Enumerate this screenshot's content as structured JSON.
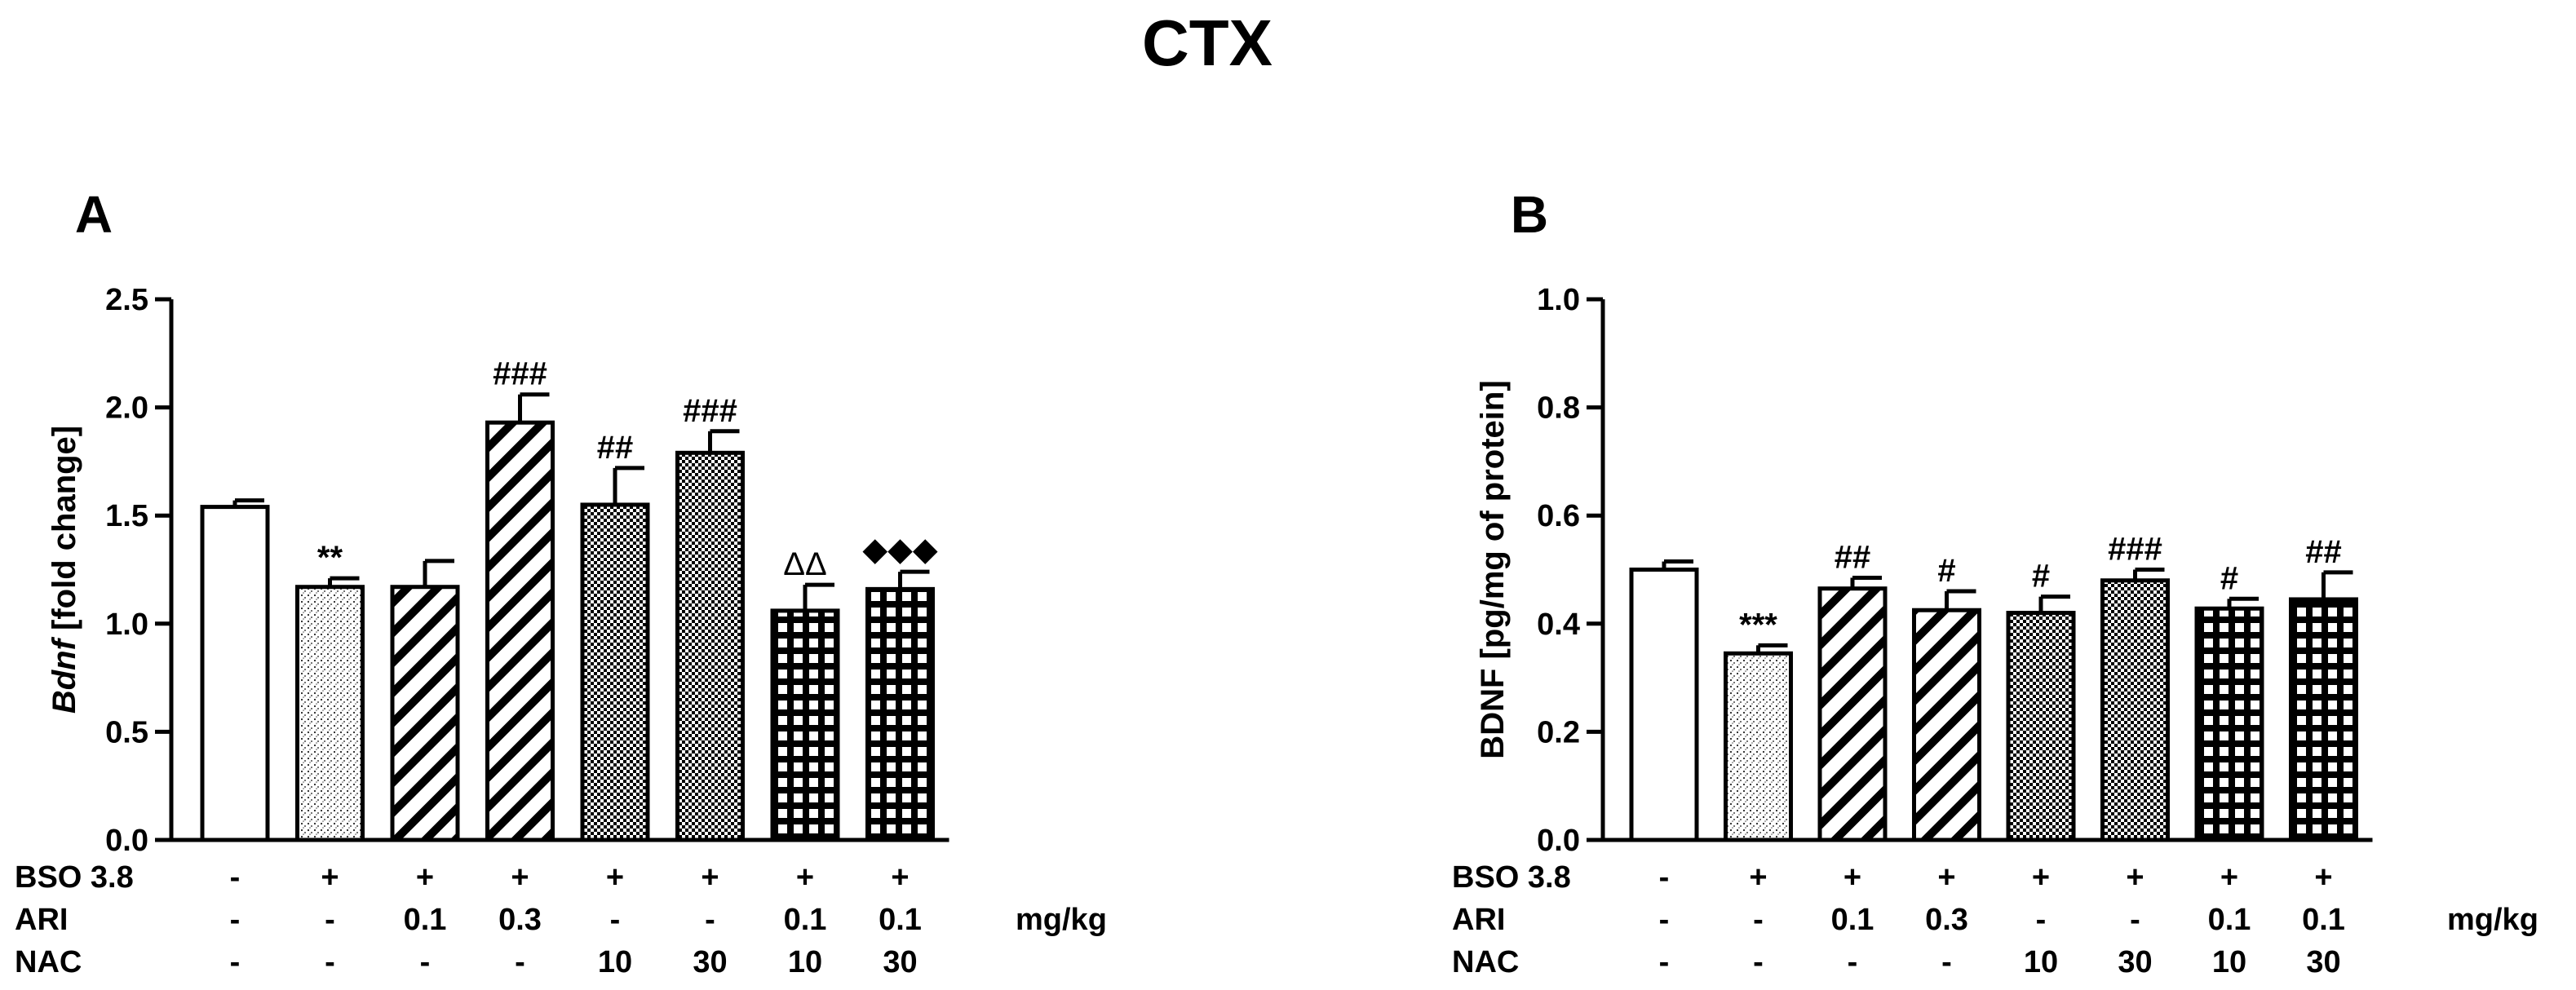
{
  "title": "CTX",
  "chart_data": [
    {
      "type": "bar",
      "panel": "A",
      "ylabel_italic": "Bdnf",
      "ylabel_rest": " [fold change]",
      "ylim": [
        0,
        2.5
      ],
      "yticks": [
        "0.0",
        "0.5",
        "1.0",
        "1.5",
        "2.0",
        "2.5"
      ],
      "values": [
        1.54,
        1.17,
        1.17,
        1.93,
        1.55,
        1.79,
        1.06,
        1.16
      ],
      "errors": [
        0.03,
        0.04,
        0.12,
        0.13,
        0.17,
        0.1,
        0.12,
        0.08
      ],
      "patterns": [
        "white",
        "stipple",
        "diag",
        "diag",
        "check",
        "check",
        "grid",
        "grid"
      ],
      "annotations": [
        "",
        "**",
        "",
        "###",
        "##",
        "###",
        "ΔΔ",
        "◆◆◆"
      ],
      "rows": [
        {
          "label": "BSO 3.8",
          "cells": [
            "-",
            "+",
            "+",
            "+",
            "+",
            "+",
            "+",
            "+"
          ]
        },
        {
          "label": "ARI",
          "cells": [
            "-",
            "-",
            "0.1",
            "0.3",
            "-",
            "-",
            "0.1",
            "0.1"
          ]
        },
        {
          "label": "NAC",
          "cells": [
            "-",
            "-",
            "-",
            "-",
            "10",
            "30",
            "10",
            "30"
          ]
        }
      ],
      "unit": "mg/kg"
    },
    {
      "type": "bar",
      "panel": "B",
      "ylabel_italic": "",
      "ylabel_rest": "BDNF [pg/mg of protein]",
      "ylim": [
        0,
        1.0
      ],
      "yticks": [
        "0.0",
        "0.2",
        "0.4",
        "0.6",
        "0.8",
        "1.0"
      ],
      "values": [
        0.5,
        0.345,
        0.465,
        0.425,
        0.42,
        0.48,
        0.428,
        0.445
      ],
      "errors": [
        0.015,
        0.015,
        0.02,
        0.035,
        0.03,
        0.02,
        0.018,
        0.05
      ],
      "patterns": [
        "white",
        "stipple",
        "diag",
        "diag",
        "check",
        "check",
        "grid",
        "grid"
      ],
      "annotations": [
        "",
        "***",
        "##",
        "#",
        "#",
        "###",
        "#",
        "##"
      ],
      "rows": [
        {
          "label": "BSO 3.8",
          "cells": [
            "-",
            "+",
            "+",
            "+",
            "+",
            "+",
            "+",
            "+"
          ]
        },
        {
          "label": "ARI",
          "cells": [
            "-",
            "-",
            "0.1",
            "0.3",
            "-",
            "-",
            "0.1",
            "0.1"
          ]
        },
        {
          "label": "NAC",
          "cells": [
            "-",
            "-",
            "-",
            "-",
            "10",
            "30",
            "10",
            "30"
          ]
        }
      ],
      "unit": "mg/kg"
    }
  ]
}
